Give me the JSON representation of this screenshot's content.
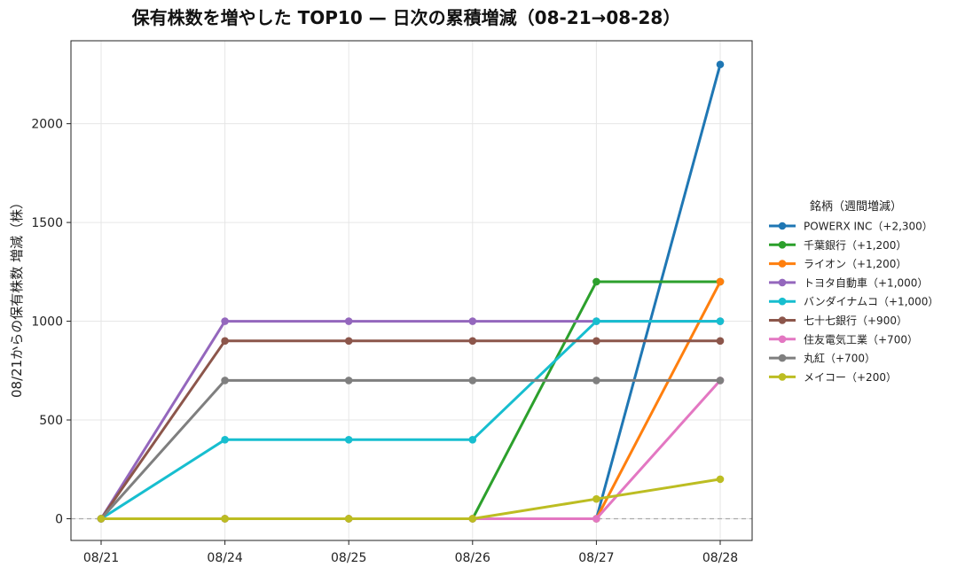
{
  "chart_data": {
    "type": "line",
    "title": "保有株数を増やした TOP10 — 日次の累積増減（08-21→08-28）",
    "xlabel": "",
    "ylabel": "08/21からの保有株数 増減（株）",
    "categories": [
      "08/21",
      "08/24",
      "08/25",
      "08/26",
      "08/27",
      "08/28"
    ],
    "ylim": [
      -110,
      2420
    ],
    "yticks": [
      0,
      500,
      1000,
      1500,
      2000
    ],
    "grid": true,
    "zero_line": true,
    "legend": {
      "title": "銘柄（週間増減）",
      "placement": "right"
    },
    "series": [
      {
        "name": "POWERX INC（+2,300）",
        "color": "#1f77b4",
        "values": [
          0,
          0,
          0,
          0,
          0,
          2300
        ]
      },
      {
        "name": "千葉銀行（+1,200）",
        "color": "#2ca02c",
        "values": [
          0,
          0,
          0,
          0,
          1200,
          1200
        ]
      },
      {
        "name": "ライオン（+1,200）",
        "color": "#ff7f0e",
        "values": [
          0,
          0,
          0,
          0,
          0,
          1200
        ]
      },
      {
        "name": "トヨタ自動車（+1,000）",
        "color": "#9467bd",
        "values": [
          0,
          1000,
          1000,
          1000,
          1000,
          1000
        ]
      },
      {
        "name": "バンダイナムコ（+1,000）",
        "color": "#17becf",
        "values": [
          0,
          400,
          400,
          400,
          1000,
          1000
        ]
      },
      {
        "name": "七十七銀行（+900）",
        "color": "#8c564b",
        "values": [
          0,
          900,
          900,
          900,
          900,
          900
        ]
      },
      {
        "name": "住友電気工業（+700）",
        "color": "#e377c2",
        "values": [
          0,
          0,
          0,
          0,
          0,
          700
        ]
      },
      {
        "name": "丸紅（+700）",
        "color": "#7f7f7f",
        "values": [
          0,
          700,
          700,
          700,
          700,
          700
        ]
      },
      {
        "name": "メイコー（+200）",
        "color": "#bcbd22",
        "values": [
          0,
          0,
          0,
          0,
          100,
          200
        ]
      }
    ]
  }
}
